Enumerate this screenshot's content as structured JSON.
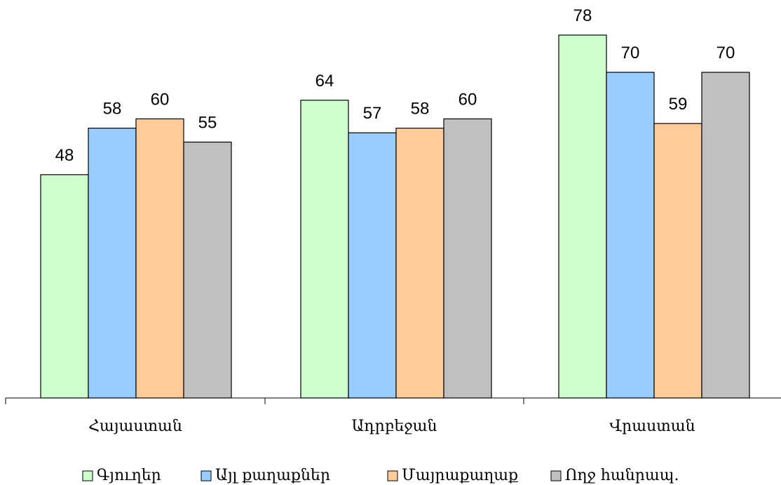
{
  "chart_data": {
    "type": "bar",
    "categories": [
      "Հայաստան",
      "Ադրբեջան",
      "Վրաստան"
    ],
    "series": [
      {
        "name": "Գյուղեր",
        "values": [
          48,
          64,
          78
        ],
        "color": "#ccffcc"
      },
      {
        "name": "Այլ քաղաքներ",
        "values": [
          58,
          57,
          70
        ],
        "color": "#99ccff"
      },
      {
        "name": "Մայրաքաղաք",
        "values": [
          60,
          58,
          59
        ],
        "color": "#ffcc99"
      },
      {
        "name": "Ողջ հանրապ.",
        "values": [
          55,
          60,
          70
        ],
        "color": "#c0c0c0"
      }
    ],
    "ylim": [
      0,
      83
    ],
    "grid": false,
    "legend": "bottom",
    "data_labels": true
  }
}
